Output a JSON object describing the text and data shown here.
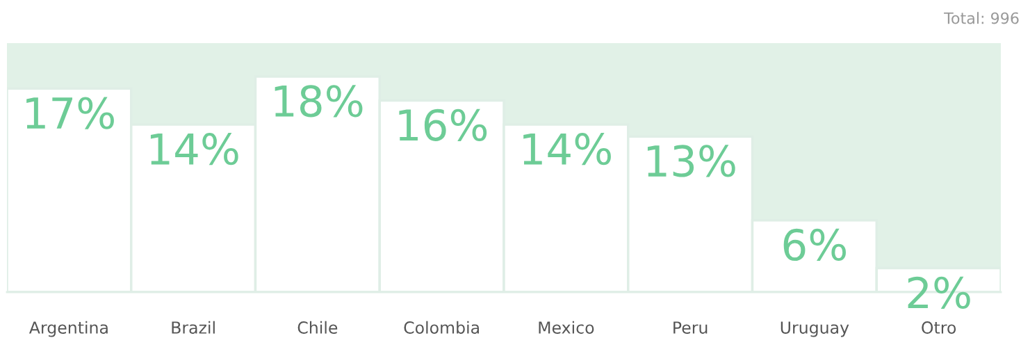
{
  "chart_data": {
    "type": "bar",
    "categories": [
      "Argentina",
      "Brazil",
      "Chile",
      "Colombia",
      "Mexico",
      "Peru",
      "Uruguay",
      "Otro"
    ],
    "values": [
      17,
      14,
      18,
      16,
      14,
      13,
      6,
      2
    ],
    "color": "#ffffff",
    "data_labels": true,
    "value_labels": [
      "17%",
      "14%",
      "18%",
      "16%",
      "14%",
      "13%",
      "6%",
      "2%"
    ],
    "annotations": [
      "Total: 996"
    ],
    "grid": false,
    "legend": false
  }
}
